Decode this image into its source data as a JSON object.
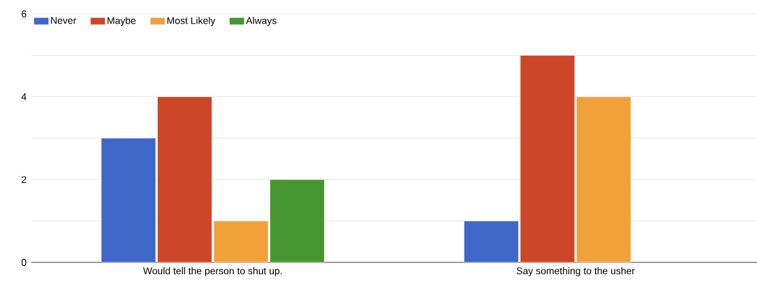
{
  "chart_data": {
    "type": "bar",
    "categories": [
      "Would tell the person to shut up.",
      "Say something to the usher"
    ],
    "series": [
      {
        "name": "Never",
        "color": "#3f66c9",
        "values": [
          3,
          1
        ]
      },
      {
        "name": "Maybe",
        "color": "#cc4627",
        "values": [
          4,
          5
        ]
      },
      {
        "name": "Most Likely",
        "color": "#f0a13a",
        "values": [
          1,
          4
        ]
      },
      {
        "name": "Always",
        "color": "#46962f",
        "values": [
          2,
          null
        ]
      }
    ],
    "ylim": [
      0,
      6
    ],
    "yticks": [
      0,
      {
        "value": 1,
        "label": null
      },
      2,
      {
        "value": 3,
        "label": null
      },
      4,
      {
        "value": 5,
        "label": null
      },
      6
    ],
    "grid": "y",
    "legend": "top left"
  }
}
